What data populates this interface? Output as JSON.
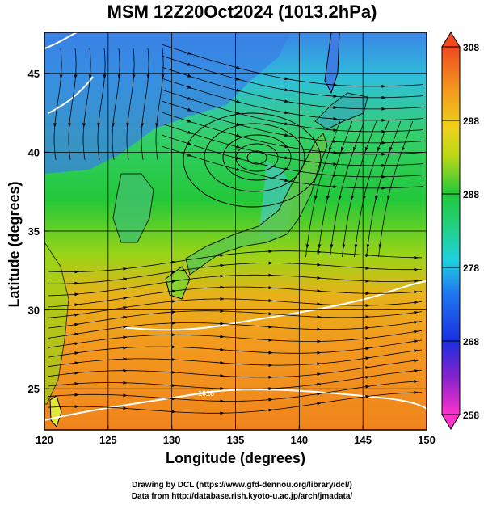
{
  "title": "MSM 12Z20Oct2024 (1013.2hPa)",
  "x_axis": {
    "label": "Longitude (degrees)",
    "ticks": [
      120,
      125,
      130,
      135,
      140,
      145,
      150
    ],
    "range": [
      120,
      150
    ]
  },
  "y_axis": {
    "label": "Latitude  (degrees)",
    "ticks": [
      25,
      30,
      35,
      40,
      45
    ],
    "range": [
      22.4,
      47.6
    ]
  },
  "colorbar": {
    "ticks": [
      258,
      268,
      278,
      288,
      298,
      308
    ],
    "range": [
      258,
      308
    ]
  },
  "contour_labels": [
    "1016"
  ],
  "credits": {
    "line1": "Drawing by DCL (https://www.gfd-dennou.org/library/dcl/)",
    "line2": "Data from http://database.rish.kyoto-u.ac.jp/arch/jmadata/"
  },
  "colors": {
    "warm": "#f08a1e",
    "cool": "#1e6ee0",
    "mid": "#22c83a",
    "land_cold": "#3c7fe6"
  }
}
